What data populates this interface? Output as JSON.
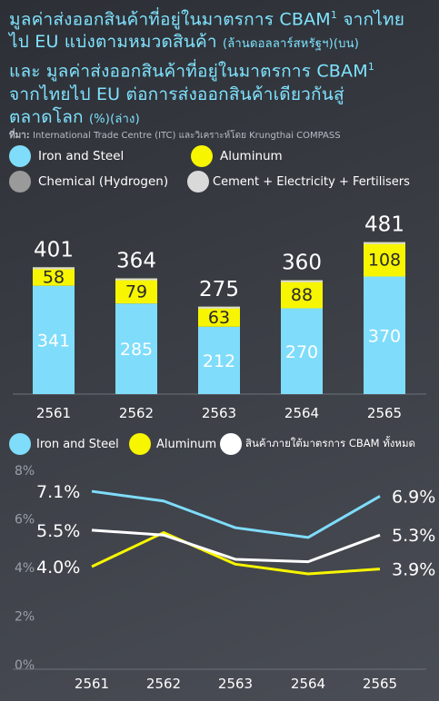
{
  "header": {
    "title_line1": "มูลค่าส่งออกสินค้าที่อยู่ในมาตรการ CBAM",
    "title_line1_sup": "1",
    "title_line1_tail": " จากไทย",
    "title_line2": "ไป EU แบ่งตามหมวดสินค้า ",
    "title_line2_unit": "(ล้านดอลลาร์สหรัฐฯ)(บน)",
    "title_line3": "และ มูลค่าส่งออกสินค้าที่อยู่ในมาตรการ CBAM",
    "title_line3_sup": "1",
    "title_line4": "จากไทยไป EU ต่อการส่งออกสินค้าเดียวกันสู่",
    "title_line5": "ตลาดโลก ",
    "title_line5_unit": "(%)(ล่าง)",
    "source_label": "ที่มา:",
    "source_text": " International Trade Centre (ITC) และวิเคราะห์โดย Krungthai COMPASS"
  },
  "legend_top": [
    {
      "label": "Iron and Steel",
      "color": "#7fdcfb"
    },
    {
      "label": "Aluminum",
      "color": "#f7f500"
    },
    {
      "label": "Chemical (Hydrogen)",
      "color": "#9a9a9a"
    },
    {
      "label": "Cement + Electricity + Fertilisers",
      "color": "#d9d9d9"
    }
  ],
  "legend_bottom": [
    {
      "label": "Iron and Steel",
      "color": "#7fdcfb"
    },
    {
      "label": "Aluminum",
      "color": "#f7f500"
    },
    {
      "label": "สินค้าภายใต้มาตรการ CBAM ทั้งหมด",
      "color": "#ffffff"
    }
  ],
  "chart_data": [
    {
      "type": "bar",
      "stacked": true,
      "categories": [
        "2561",
        "2562",
        "2563",
        "2564",
        "2565"
      ],
      "series": [
        {
          "name": "Iron and Steel",
          "values": [
            341,
            285,
            212,
            270,
            370
          ],
          "color": "#7fdcfb"
        },
        {
          "name": "Aluminum",
          "values": [
            58,
            79,
            63,
            88,
            108
          ],
          "color": "#f7f500"
        }
      ],
      "totals": [
        401,
        364,
        275,
        360,
        481
      ],
      "ylim": [
        0,
        540
      ]
    },
    {
      "type": "line",
      "x": [
        "2561",
        "2562",
        "2563",
        "2564",
        "2565"
      ],
      "series": [
        {
          "name": "Iron and Steel",
          "values": [
            7.1,
            6.7,
            5.6,
            5.2,
            6.9
          ],
          "color": "#7fdcfb"
        },
        {
          "name": "Aluminum",
          "values": [
            4.0,
            5.4,
            4.1,
            3.7,
            3.9
          ],
          "color": "#f7f500"
        },
        {
          "name": "สินค้าภายใต้มาตรการ CBAM ทั้งหมด",
          "values": [
            5.5,
            5.3,
            4.3,
            4.2,
            5.3
          ],
          "color": "#ffffff"
        }
      ],
      "start_labels": [
        "7.1%",
        "4.0%",
        "5.5%"
      ],
      "end_labels": [
        "6.9%",
        "3.9%",
        "5.3%"
      ],
      "yticks": [
        "8%",
        "6%",
        "4%",
        "2%",
        "0%"
      ],
      "ylim": [
        0,
        8
      ]
    }
  ]
}
